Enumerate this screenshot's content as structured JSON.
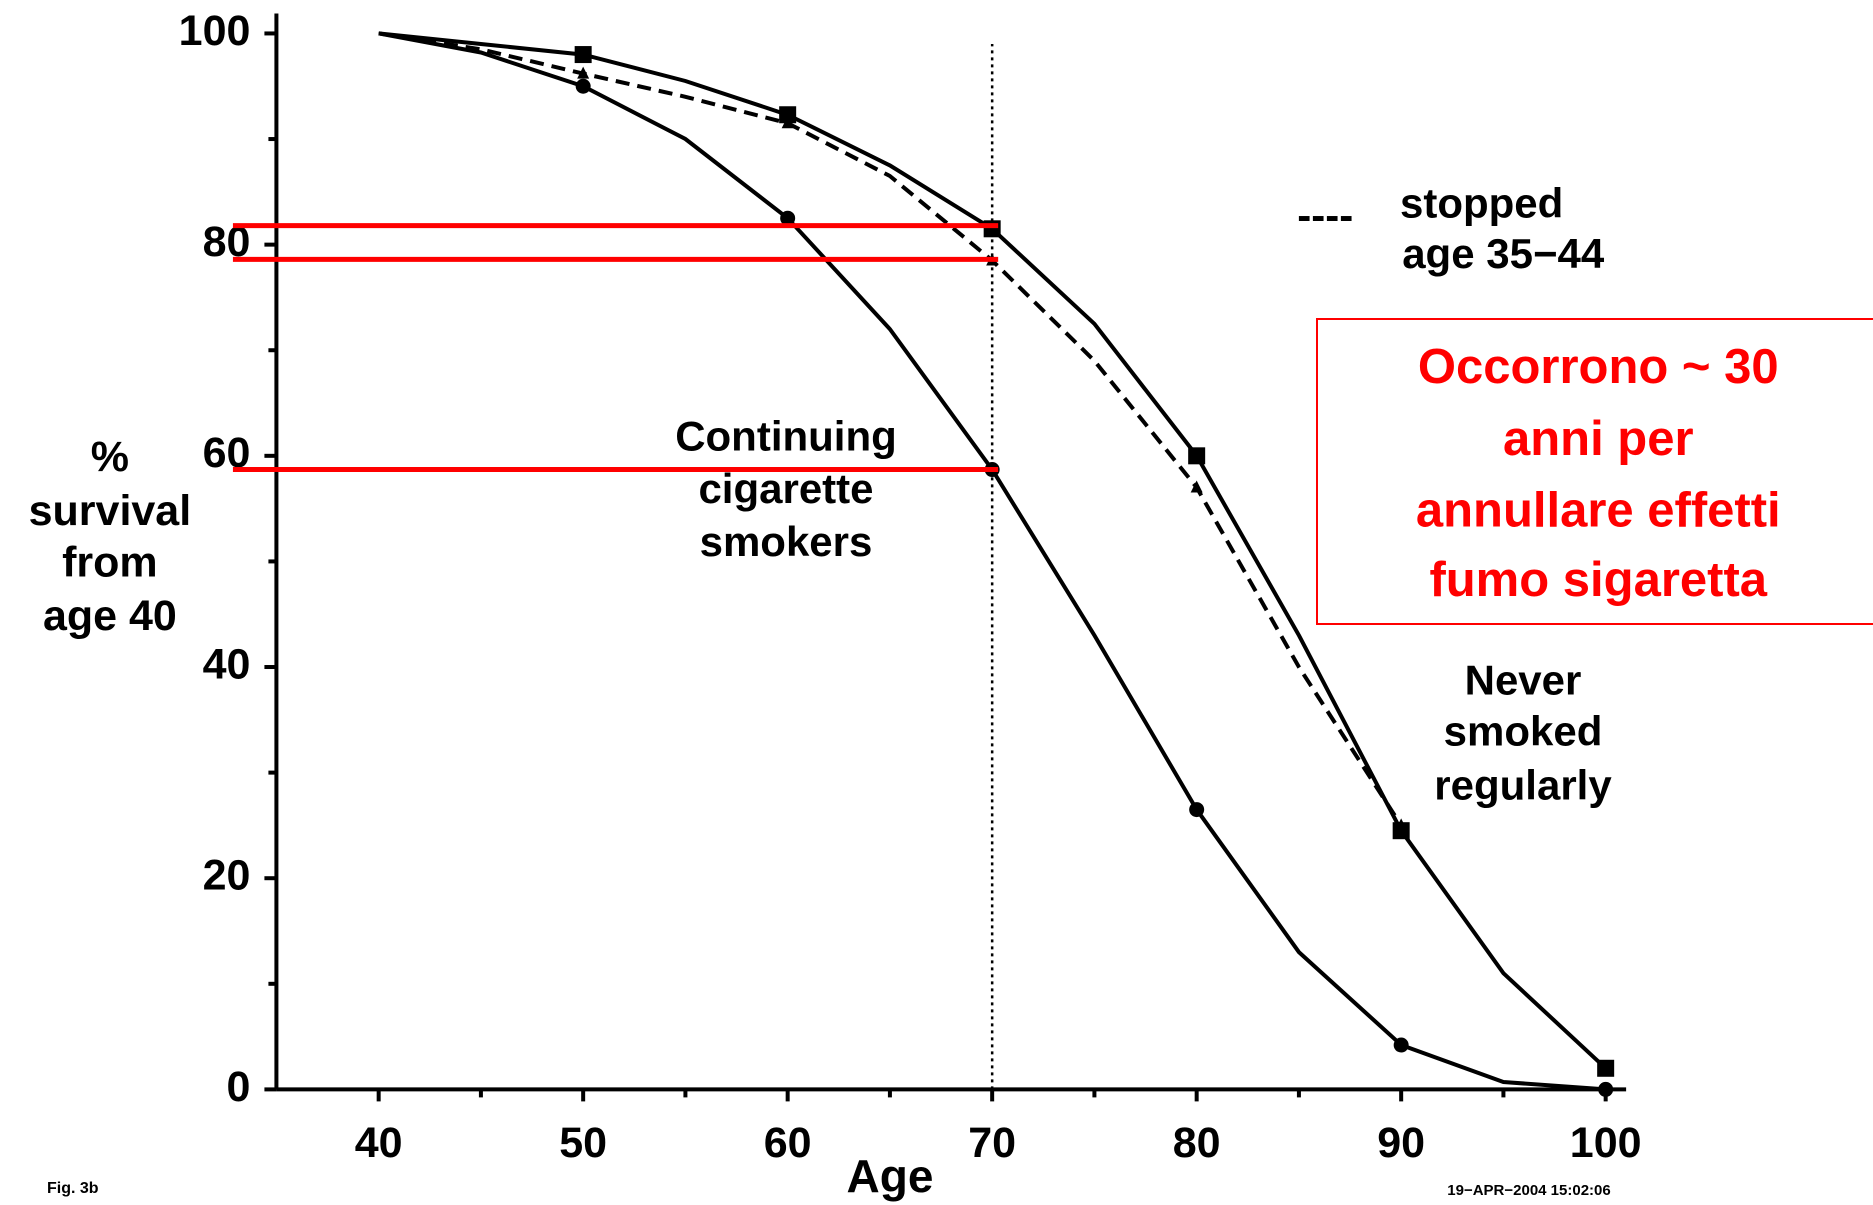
{
  "chart_data": {
    "type": "line",
    "x": [
      40,
      45,
      50,
      55,
      60,
      65,
      70,
      75,
      80,
      85,
      90,
      95,
      100
    ],
    "series": [
      {
        "name": "Never smoked regularly",
        "color": "#000000",
        "dash": "solid",
        "marker": "square",
        "values": [
          100,
          99,
          98,
          95.5,
          92.3,
          87.5,
          81.5,
          72.5,
          60,
          43,
          24.5,
          11,
          2
        ]
      },
      {
        "name": "stopped age 35−44",
        "color": "#000000",
        "dash": "dashed",
        "marker": "triangle",
        "values": [
          100,
          98.5,
          96.2,
          94,
          91.5,
          86.5,
          78.5,
          69,
          57,
          40,
          25,
          null,
          null
        ]
      },
      {
        "name": "Continuing cigarette smokers",
        "color": "#000000",
        "dash": "solid",
        "marker": "circle",
        "values": [
          100,
          98.2,
          95,
          90,
          82.5,
          72,
          58.7,
          43,
          26.5,
          13,
          4.2,
          0.7,
          0
        ]
      }
    ],
    "xlim": [
      35,
      101
    ],
    "ylim": [
      0,
      100
    ],
    "xticks": [
      40,
      50,
      60,
      70,
      80,
      90,
      100
    ],
    "xticks_minor": [
      45,
      55,
      65,
      75,
      85,
      95
    ],
    "yticks": [
      0,
      20,
      40,
      60,
      80,
      100
    ],
    "yticks_minor": [
      10,
      30,
      50,
      70,
      90
    ],
    "x_label": "Age",
    "y_label_lines": [
      "%",
      "survival",
      "from",
      "age 40"
    ],
    "vline": {
      "x": 70,
      "style": "dotted"
    },
    "reference_lines": {
      "color": "#ff0000",
      "x_end": 70,
      "values": [
        81.8,
        78.6,
        58.7
      ]
    },
    "series_labels": [
      [
        "Never",
        "smoked",
        "regularly"
      ],
      [
        "stopped",
        "age 35−44"
      ],
      [
        "Continuing",
        "cigarette",
        "smokers"
      ]
    ],
    "legend_dash": "----",
    "callout": {
      "color": "#ff0000",
      "lines": [
        "Occorrono ~ 30",
        "anni per",
        "annullare effetti",
        "fumo sigaretta"
      ]
    },
    "figure_label": "Fig. 3b",
    "timestamp": "19−APR−2004 15:02:06"
  }
}
